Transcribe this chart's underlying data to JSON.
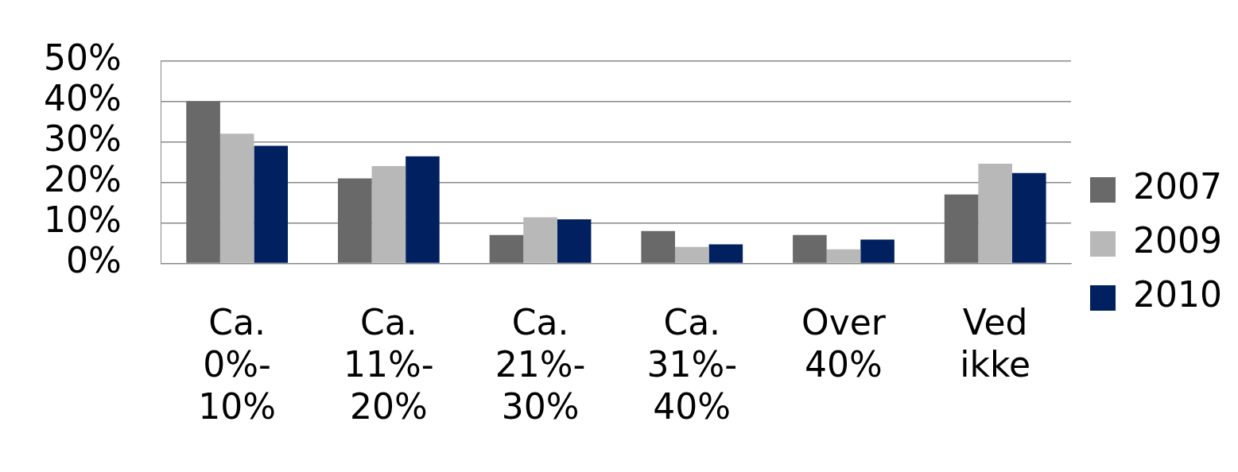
{
  "chart_data": {
    "type": "bar",
    "categories": [
      "Ca. 0%-10%",
      "Ca. 11%-20%",
      "Ca. 21%-30%",
      "Ca. 31%-40%",
      "Over 40%",
      "Ved ikke"
    ],
    "series": [
      {
        "name": "2007",
        "color": "#696969",
        "values": [
          40,
          21,
          7,
          8,
          7,
          17
        ]
      },
      {
        "name": "2009",
        "color": "#b8b8b8",
        "values": [
          32,
          24,
          11.4,
          4.1,
          3.5,
          24.6
        ]
      },
      {
        "name": "2010",
        "color": "#002060",
        "values": [
          29,
          26.4,
          10.9,
          4.7,
          5.9,
          22.3
        ]
      }
    ],
    "ylim": [
      0,
      50
    ],
    "yticks": [
      {
        "value": 0,
        "label": "0%"
      },
      {
        "value": 10,
        "label": "10%"
      },
      {
        "value": 20,
        "label": "20%"
      },
      {
        "value": 30,
        "label": "30%"
      },
      {
        "value": 40,
        "label": "40%"
      },
      {
        "value": 50,
        "label": "50%"
      }
    ],
    "grid": "y",
    "legend": "right"
  }
}
